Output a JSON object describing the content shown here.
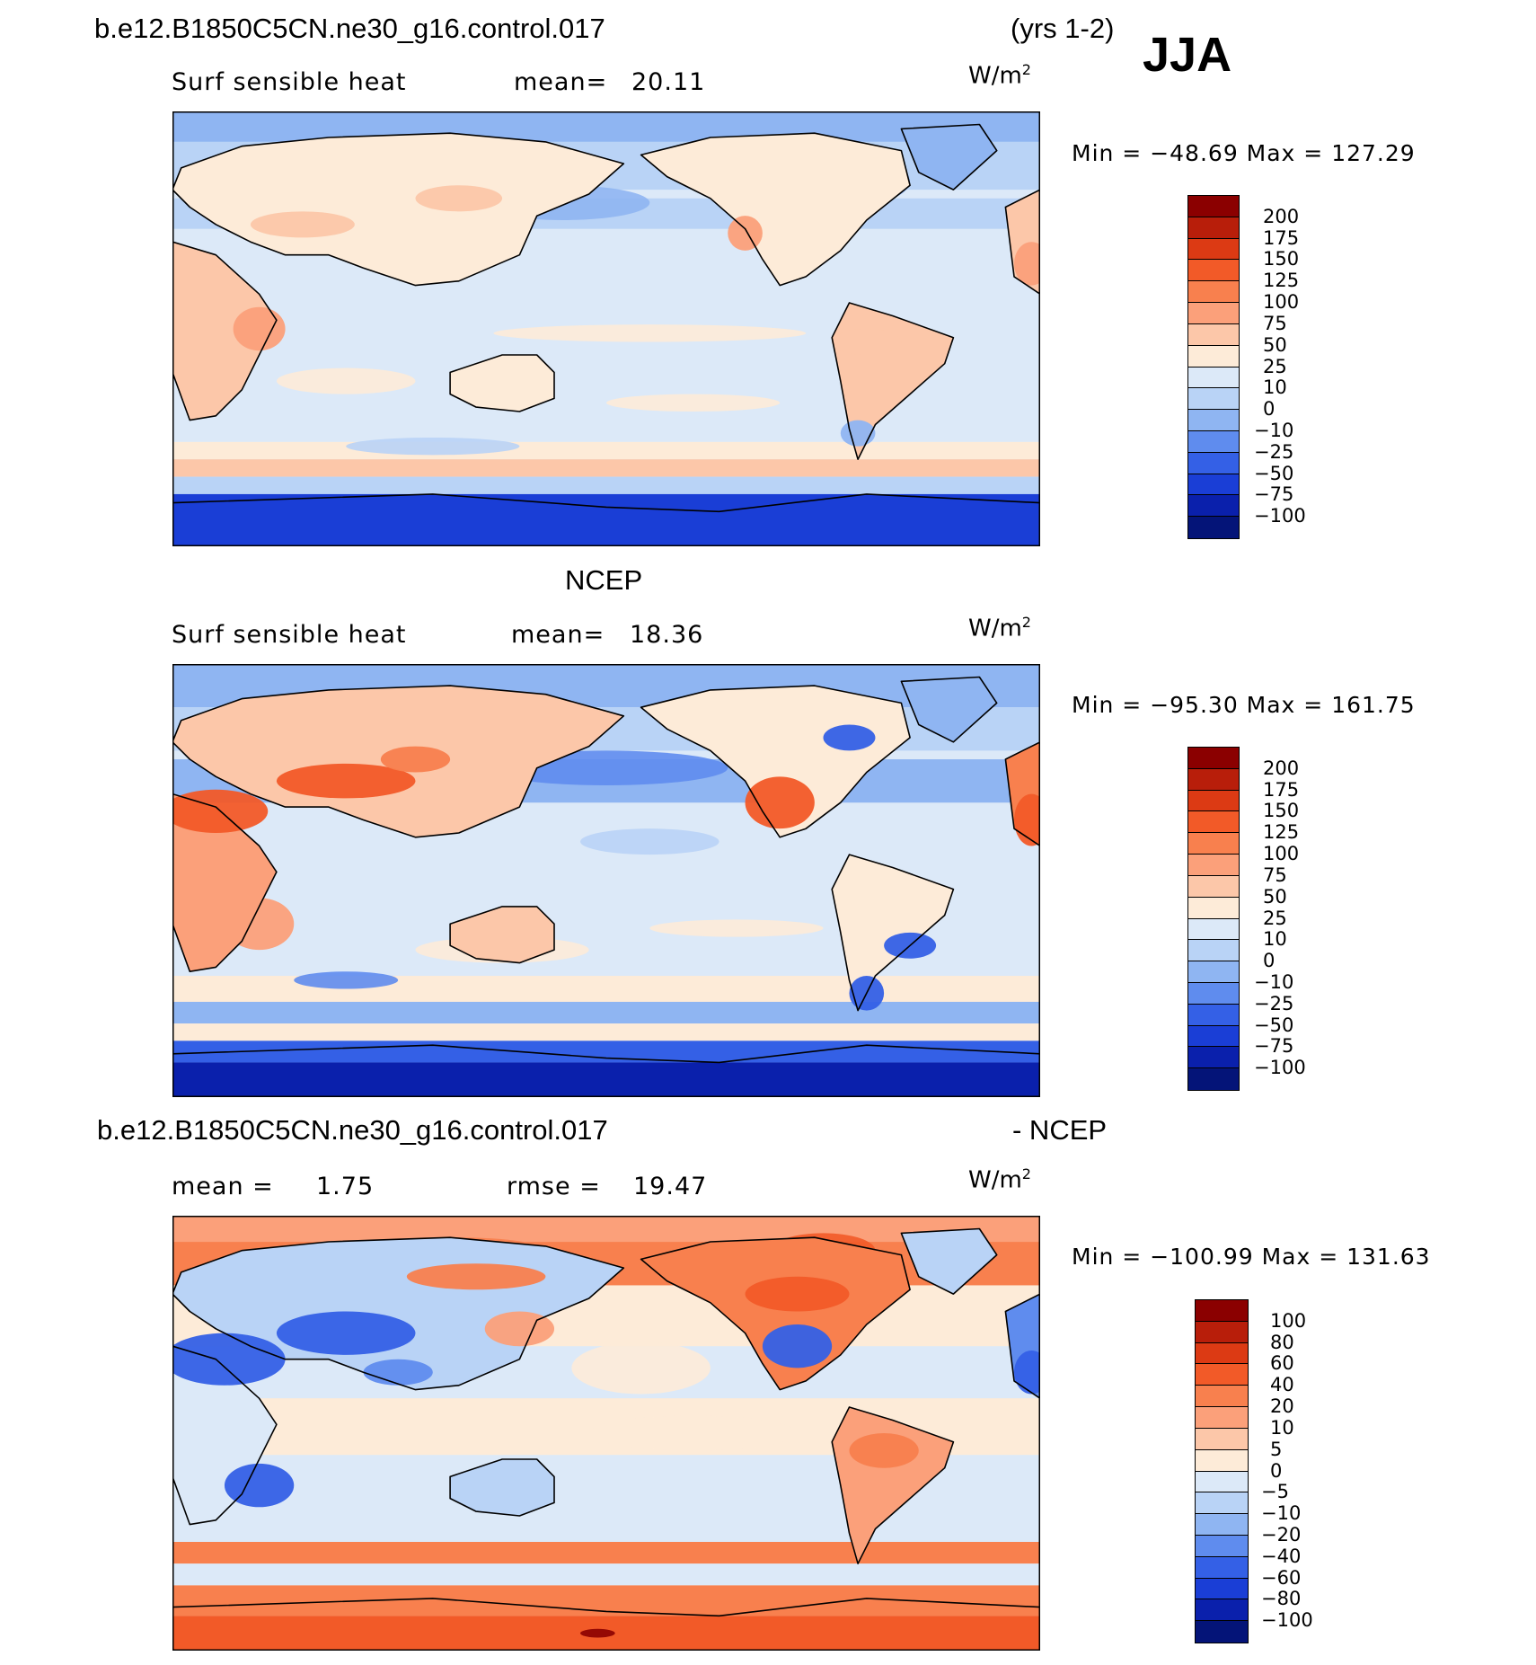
{
  "header": {
    "case_name": "b.e12.B1850C5CN.ne30_g16.control.017",
    "years": "(yrs 1-2)",
    "season": "JJA"
  },
  "panels": [
    {
      "title": "",
      "variable": "Surf sensible heat",
      "stat1_label": "mean=",
      "stat1_value": "20.11",
      "stat2_label": "",
      "stat2_value": "",
      "units": "W/m",
      "units_exp": "2",
      "minmax": "Min = −48.69 Max = 127.29"
    },
    {
      "title": "NCEP",
      "variable": "Surf sensible heat",
      "stat1_label": "mean=",
      "stat1_value": "18.36",
      "stat2_label": "",
      "stat2_value": "",
      "units": "W/m",
      "units_exp": "2",
      "minmax": "Min = −95.30 Max = 161.75"
    },
    {
      "title_left": "b.e12.B1850C5CN.ne30_g16.control.017",
      "title_right": "- NCEP",
      "variable": "",
      "stat1_label": "mean =",
      "stat1_value": "1.75",
      "stat2_label": "rmse =",
      "stat2_value": "19.47",
      "units": "W/m",
      "units_exp": "2",
      "minmax": "Min = −100.99 Max = 131.63"
    }
  ],
  "colorbars": {
    "abs_levels": [
      "200",
      "175",
      "150",
      "125",
      "100",
      "75",
      "50",
      "25",
      "10",
      "0",
      "−10",
      "−25",
      "−50",
      "−75",
      "−100"
    ],
    "abs_colors": [
      "#8b0000",
      "#b81e0a",
      "#dc3a14",
      "#f25a28",
      "#f8804e",
      "#fba07a",
      "#fcc7a9",
      "#fdebd8",
      "#dce9f8",
      "#b9d3f6",
      "#8fb5f2",
      "#5f8cee",
      "#3460e6",
      "#1a3ed6",
      "#0a20ac",
      "#041478"
    ],
    "diff_levels": [
      "100",
      "80",
      "60",
      "40",
      "20",
      "10",
      "5",
      "0",
      "−5",
      "−10",
      "−20",
      "−40",
      "−60",
      "−80",
      "−100"
    ],
    "diff_colors": [
      "#8b0000",
      "#b81e0a",
      "#dc3a14",
      "#f25a28",
      "#f8804e",
      "#fba07a",
      "#fcc7a9",
      "#fdebd8",
      "#dce9f8",
      "#b9d3f6",
      "#8fb5f2",
      "#5f8cee",
      "#3460e6",
      "#1a3ed6",
      "#0a20ac",
      "#041478"
    ]
  }
}
